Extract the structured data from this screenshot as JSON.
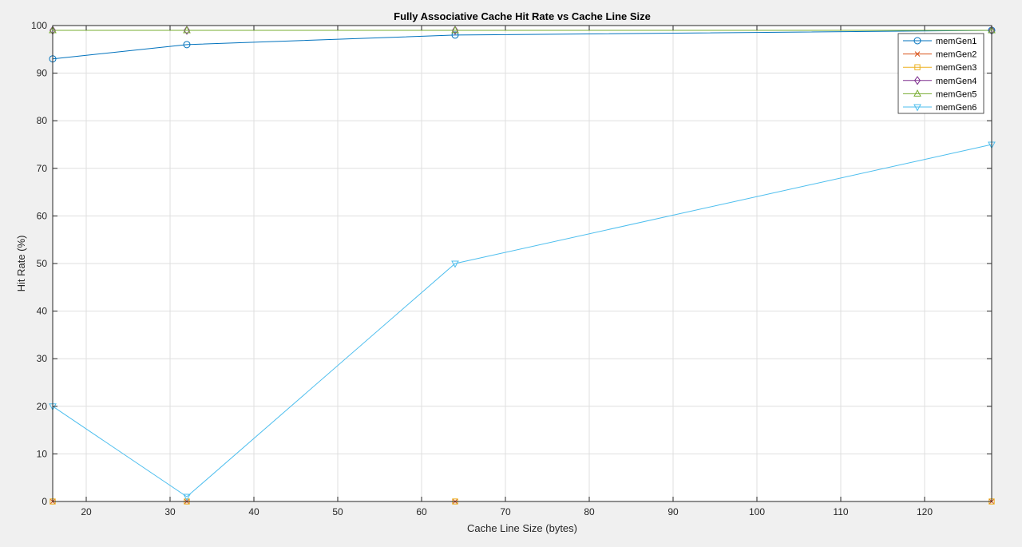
{
  "chart_data": {
    "type": "line",
    "title": "Fully Associative Cache Hit Rate vs Cache Line Size",
    "xlabel": "Cache Line Size (bytes)",
    "ylabel": "Hit Rate (%)",
    "xlim": [
      16,
      128
    ],
    "ylim": [
      0,
      100
    ],
    "xticks": [
      20,
      30,
      40,
      50,
      60,
      70,
      80,
      90,
      100,
      110,
      120
    ],
    "yticks": [
      0,
      10,
      20,
      30,
      40,
      50,
      60,
      70,
      80,
      90,
      100
    ],
    "grid": true,
    "legend_position": "top-right",
    "x": [
      16,
      32,
      64,
      128
    ],
    "series": [
      {
        "name": "memGen1",
        "values": [
          93,
          96,
          98,
          99
        ],
        "color": "#0072BD",
        "marker": "circle"
      },
      {
        "name": "memGen2",
        "values": [
          0,
          0,
          0,
          0
        ],
        "color": "#D95319",
        "marker": "x"
      },
      {
        "name": "memGen3",
        "values": [
          0,
          0,
          0,
          0
        ],
        "color": "#EDB120",
        "marker": "square"
      },
      {
        "name": "memGen4",
        "values": [
          99,
          99,
          99,
          99
        ],
        "color": "#7E2F8E",
        "marker": "diamond"
      },
      {
        "name": "memGen5",
        "values": [
          99,
          99,
          99,
          99
        ],
        "color": "#77AC30",
        "marker": "triangle-up"
      },
      {
        "name": "memGen6",
        "values": [
          20,
          1,
          50,
          75
        ],
        "color": "#4DBEEE",
        "marker": "triangle-down"
      }
    ]
  }
}
